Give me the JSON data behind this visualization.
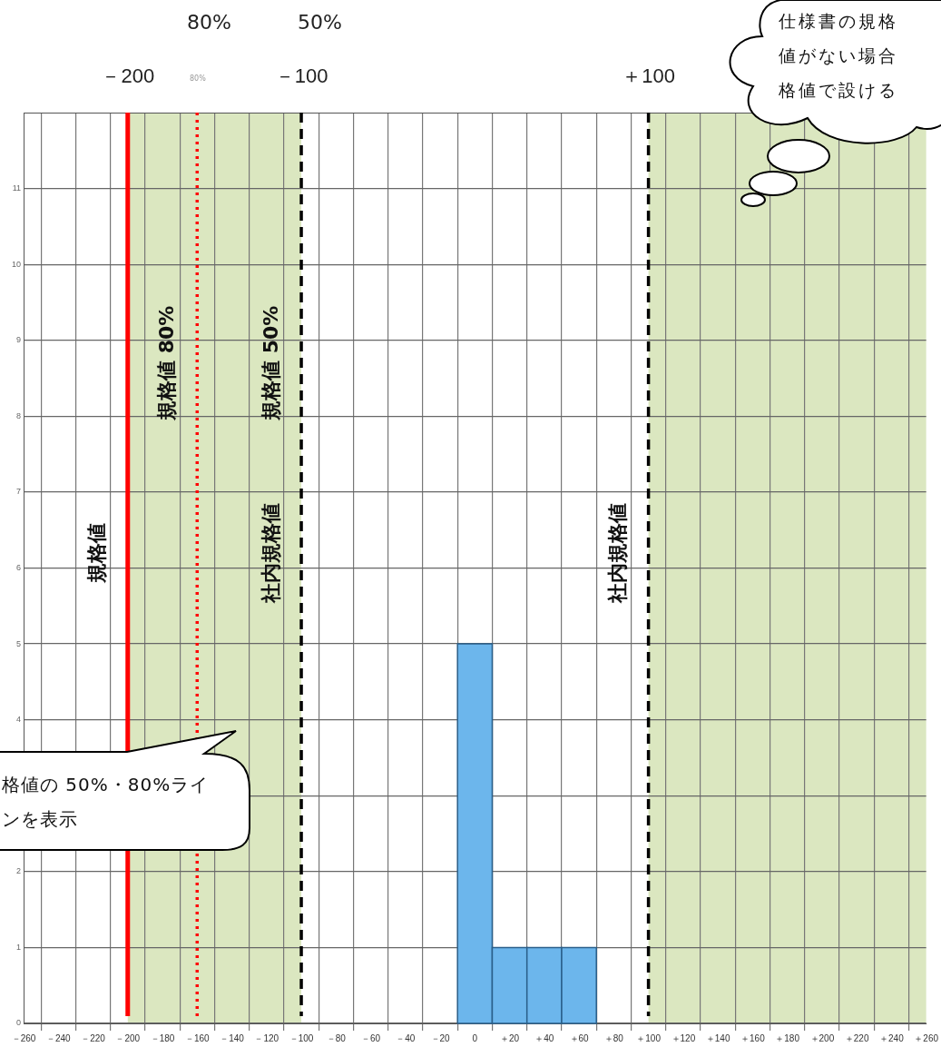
{
  "chart_data": {
    "type": "histogram",
    "bins": [
      -10,
      10,
      30,
      50,
      70
    ],
    "values": [
      5,
      1,
      1,
      1
    ],
    "color": "#6cb6ec",
    "xlim": [
      -260,
      260
    ],
    "xticks": [
      {
        "value": -260,
        "label": "－260"
      },
      {
        "value": -240,
        "label": "－240"
      },
      {
        "value": -220,
        "label": "－220"
      },
      {
        "value": -200,
        "label": "－200"
      },
      {
        "value": -180,
        "label": "－180"
      },
      {
        "value": -160,
        "label": "－160"
      },
      {
        "value": -140,
        "label": "－140"
      },
      {
        "value": -120,
        "label": "－120"
      },
      {
        "value": -100,
        "label": "－100"
      },
      {
        "value": -80,
        "label": "－80"
      },
      {
        "value": -60,
        "label": "－60"
      },
      {
        "value": -40,
        "label": "－40"
      },
      {
        "value": -20,
        "label": "－20"
      },
      0,
      {
        "value": 20,
        "label": "＋20"
      },
      {
        "value": 40,
        "label": "＋40"
      },
      {
        "value": 60,
        "label": "＋60"
      },
      {
        "value": 80,
        "label": "＋80"
      },
      {
        "value": 100,
        "label": "＋100"
      },
      {
        "value": 120,
        "label": "＋120"
      },
      {
        "value": 140,
        "label": "＋140"
      },
      {
        "value": 160,
        "label": "＋160"
      },
      {
        "value": 180,
        "label": "＋180"
      },
      {
        "value": 200,
        "label": "＋200"
      },
      {
        "value": 220,
        "label": "＋220"
      },
      {
        "value": 240,
        "label": "＋240"
      },
      {
        "value": 260,
        "label": "＋260"
      }
    ],
    "x2lim": [
      -260,
      260
    ],
    "x2ticks": [
      {
        "value": -200,
        "label": "－200"
      },
      {
        "value": -100,
        "label": "－100"
      },
      {
        "value": 100,
        "label": "＋100"
      }
    ],
    "ylim": [
      0,
      12
    ],
    "yticks": [
      0,
      1,
      2,
      {
        "value": 3,
        "label": null
      },
      4,
      5,
      6,
      7,
      8,
      9,
      10,
      11
    ],
    "grid": true,
    "legend": false,
    "ref_lines": [
      {
        "axis": "x",
        "value": -200,
        "label": "規格値",
        "color": "#ff0000",
        "line_style": "solid"
      },
      {
        "axis": "x",
        "value": -160,
        "label": "規格値 80%",
        "color": "#ff0000",
        "line_style": "dotted"
      },
      {
        "axis": "x",
        "value": -100,
        "label": "社内規格値",
        "color": "#000000",
        "line_style": "dashed"
      },
      {
        "axis": "x",
        "value": 100,
        "label": "社内規格値",
        "color": "#000000",
        "line_style": "dashed"
      }
    ],
    "bands": [
      {
        "axis": "x",
        "from": -200,
        "to": -100,
        "color": "#dbe7c0"
      },
      {
        "axis": "x",
        "from": 100,
        "to": 260,
        "color": "#dbe7c0"
      }
    ],
    "annotations": [
      "80%",
      "50%",
      "80%",
      "仕様書の規格値がない場合格値で設ける",
      "格値の 50%・80%ラインを表示",
      {
        "text": "規格値 50%",
        "x": -100,
        "y": 8.7
      }
    ]
  }
}
